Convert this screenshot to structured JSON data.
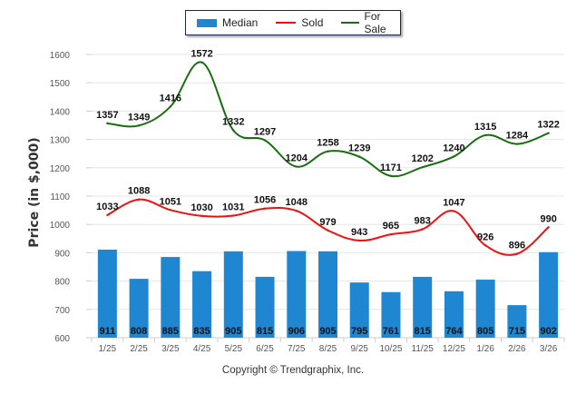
{
  "chart_data": {
    "type": "bar",
    "title": "",
    "xlabel": "",
    "ylabel": "Price (in $,000)",
    "ylim": [
      600,
      1600
    ],
    "yticks": [
      600,
      700,
      800,
      900,
      1000,
      1100,
      1200,
      1300,
      1400,
      1500,
      1600
    ],
    "grid": true,
    "legend_position": "top-center",
    "categories": [
      "1/25",
      "2/25",
      "3/25",
      "4/25",
      "5/25",
      "6/25",
      "7/25",
      "8/25",
      "9/25",
      "10/25",
      "11/25",
      "12/25",
      "1/26",
      "2/26",
      "3/26"
    ],
    "series": [
      {
        "name": "Median",
        "type": "bar",
        "color": "#1f87d1",
        "values": [
          911,
          808,
          885,
          835,
          905,
          815,
          906,
          905,
          795,
          761,
          815,
          764,
          805,
          715,
          902
        ]
      },
      {
        "name": "Sold",
        "type": "line",
        "color": "#ee1111",
        "values": [
          1033,
          1088,
          1051,
          1030,
          1031,
          1056,
          1048,
          979,
          943,
          965,
          983,
          1047,
          926,
          896,
          990
        ]
      },
      {
        "name": "For Sale",
        "type": "line",
        "color": "#1a6e12",
        "values": [
          1357,
          1349,
          1416,
          1572,
          1332,
          1297,
          1204,
          1258,
          1239,
          1171,
          1202,
          1240,
          1315,
          1284,
          1322
        ]
      }
    ]
  },
  "legend": {
    "median": "Median",
    "sold": "Sold",
    "for_sale": "For Sale"
  },
  "footer": {
    "copyright": "Copyright © Trendgraphix, Inc."
  }
}
